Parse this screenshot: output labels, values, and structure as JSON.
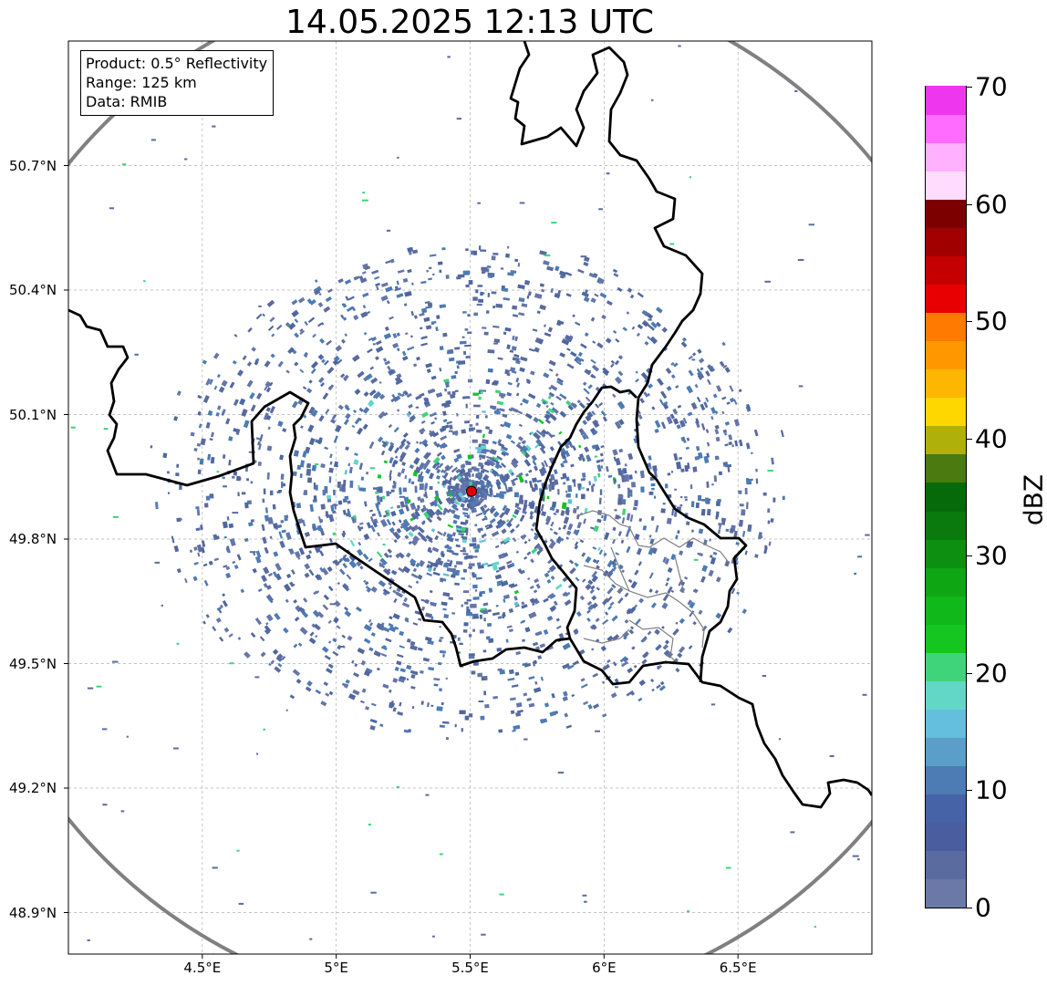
{
  "title": "14.05.2025 12:13 UTC",
  "info": {
    "product": "Product: 0.5° Reflectivity",
    "range": "Range: 125 km",
    "data": "Data: RMIB"
  },
  "map": {
    "lon_range": [
      4.0,
      7.0
    ],
    "lat_range": [
      48.8,
      51.0
    ],
    "radar_site": {
      "lon": 5.505,
      "lat": 49.915
    },
    "radar_range_km": 125,
    "lat_ticks": [
      {
        "value": 50.7,
        "label": "50.7°N"
      },
      {
        "value": 50.4,
        "label": "50.4°N"
      },
      {
        "value": 50.1,
        "label": "50.1°N"
      },
      {
        "value": 49.8,
        "label": "49.8°N"
      },
      {
        "value": 49.5,
        "label": "49.5°N"
      },
      {
        "value": 49.2,
        "label": "49.2°N"
      },
      {
        "value": 48.9,
        "label": "48.9°N"
      }
    ],
    "lon_ticks": [
      {
        "value": 4.5,
        "label": "4.5°E"
      },
      {
        "value": 5.0,
        "label": "5°E"
      },
      {
        "value": 5.5,
        "label": "5.5°E"
      },
      {
        "value": 6.0,
        "label": "6°E"
      },
      {
        "value": 6.5,
        "label": "6.5°E"
      }
    ],
    "gridlines": true,
    "range_ring_color": "#808080",
    "border_color": "#000000",
    "subdivision_color": "#808080",
    "site_marker_color": "#e00000"
  },
  "colorbar": {
    "unit": "dBZ",
    "min": 0,
    "max": 70,
    "tick_values": [
      0,
      10,
      20,
      30,
      40,
      50,
      60,
      70
    ],
    "tick_labels": [
      "0",
      "10",
      "20",
      "30",
      "40",
      "50",
      "60",
      "70"
    ],
    "colors": [
      "#6a79a8",
      "#5a6ba0",
      "#4a5d9f",
      "#4563a6",
      "#4d7bb4",
      "#5a9ec9",
      "#64bedd",
      "#62d7c7",
      "#3fd47a",
      "#14c61f",
      "#10b81a",
      "#0fa613",
      "#0d8f12",
      "#0a7a0e",
      "#066a0a",
      "#4a7a10",
      "#afb00a",
      "#ffd700",
      "#ffb600",
      "#ff9800",
      "#ff7a00",
      "#e80000",
      "#c40000",
      "#a00000",
      "#7c0000",
      "#ffdcff",
      "#ffb1ff",
      "#ff6cff",
      "#ee36ee"
    ]
  }
}
